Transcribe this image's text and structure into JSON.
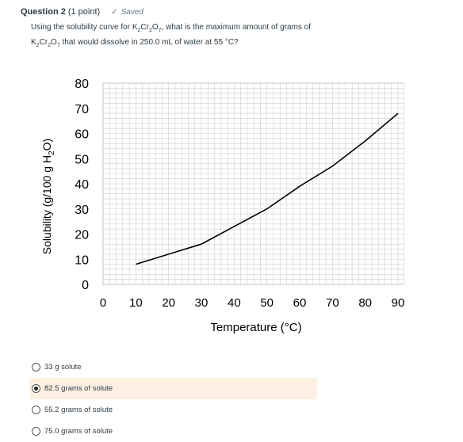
{
  "header": {
    "question_label": "Question 2",
    "points": "(1 point)",
    "saved_label": "Saved"
  },
  "question": {
    "line1_a": "Using the solubility curve for K",
    "line1_b": "Cr",
    "line1_c": "O",
    "line1_d": ", what is the maximum amount of grams of",
    "line2_a": "K",
    "line2_b": "Cr",
    "line2_c": "O",
    "line2_d": " that would dissolve in 250.0 mL of water at 55 °C?",
    "sub2": "2",
    "sub7": "7"
  },
  "chart_data": {
    "type": "line",
    "xlabel": "Temperature (°C)",
    "ylabel_parts": [
      "Solubility (g/100 g H",
      "2",
      "O)"
    ],
    "xlim": [
      0,
      90
    ],
    "ylim": [
      0,
      80
    ],
    "x_ticks": [
      "0",
      "10",
      "20",
      "30",
      "40",
      "50",
      "60",
      "70",
      "80",
      "90"
    ],
    "y_ticks": [
      "0",
      "10",
      "20",
      "30",
      "40",
      "50",
      "60",
      "70",
      "80"
    ],
    "grid": true,
    "series": [
      {
        "x": [
          10,
          20,
          30,
          40,
          50,
          60,
          70,
          80,
          90
        ],
        "y": [
          8,
          12,
          16,
          23,
          30,
          39,
          47,
          57,
          68
        ]
      }
    ]
  },
  "answers": [
    {
      "label": "33 g solute",
      "selected": false
    },
    {
      "label": "82.5 grams of solute",
      "selected": true
    },
    {
      "label": "55.2 grams of solute",
      "selected": false
    },
    {
      "label": "75.0 grams of solute",
      "selected": false
    }
  ]
}
